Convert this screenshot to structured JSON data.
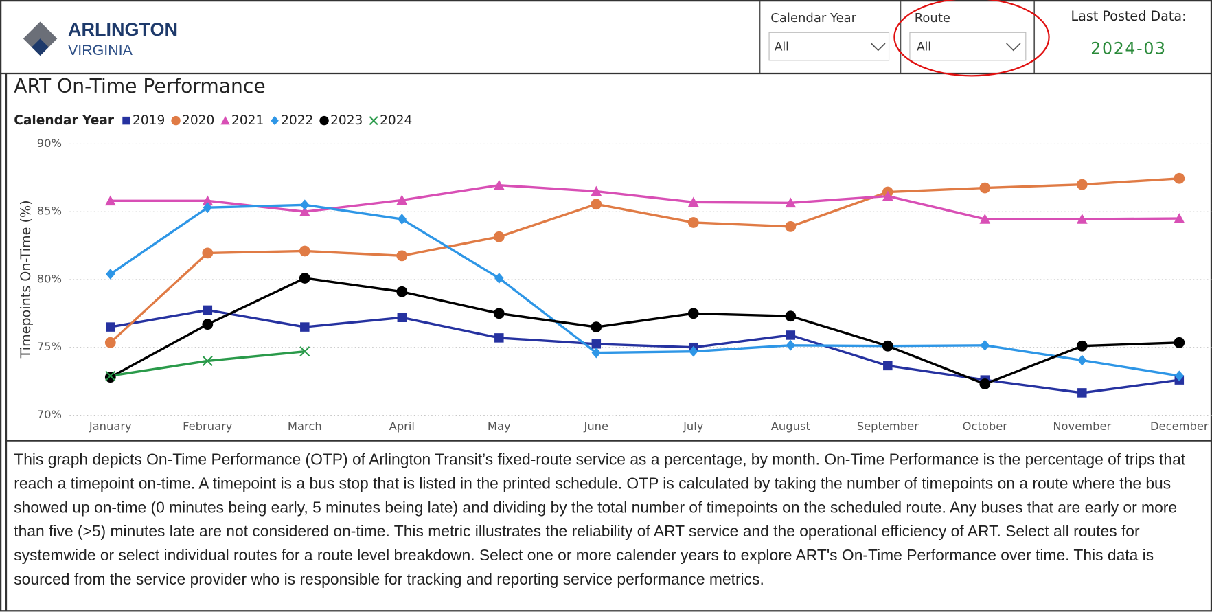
{
  "header": {
    "logo_name": "ARLINGTON",
    "logo_sub": "VIRGINIA"
  },
  "filters": [
    {
      "label": "Calendar Year",
      "value": "All"
    },
    {
      "label": "Route",
      "value": "All"
    }
  ],
  "last_posted": {
    "label": "Last Posted Data:",
    "value": "2024-03"
  },
  "chart_data": {
    "type": "line",
    "title": "ART On-Time Performance",
    "legend_title": "Calendar Year",
    "y_label": "Timepoints On-Time (%)",
    "categories": [
      "January",
      "February",
      "March",
      "April",
      "May",
      "June",
      "July",
      "August",
      "September",
      "October",
      "November",
      "December"
    ],
    "series": [
      {
        "name": "2019",
        "color": "#2632a0",
        "marker": "square",
        "values": [
          76.5,
          77.75,
          76.5,
          77.2,
          75.7,
          75.25,
          75.0,
          75.9,
          73.65,
          72.6,
          71.65,
          72.6
        ]
      },
      {
        "name": "2020",
        "color": "#e07b45",
        "marker": "circle",
        "values": [
          75.35,
          81.95,
          82.1,
          81.75,
          83.15,
          85.55,
          84.2,
          83.9,
          86.45,
          86.75,
          87.0,
          87.45
        ]
      },
      {
        "name": "2021",
        "color": "#d84fb5",
        "marker": "triangle",
        "values": [
          85.8,
          85.8,
          85.0,
          85.85,
          86.95,
          86.5,
          85.7,
          85.65,
          86.15,
          84.45,
          84.45,
          84.5
        ]
      },
      {
        "name": "2022",
        "color": "#2e96e6",
        "marker": "diamond",
        "values": [
          80.4,
          85.3,
          85.5,
          84.45,
          80.1,
          74.6,
          74.7,
          75.15,
          75.1,
          75.15,
          74.05,
          72.9
        ]
      },
      {
        "name": "2023",
        "color": "#000000",
        "marker": "circle",
        "values": [
          72.8,
          76.7,
          80.1,
          79.1,
          77.5,
          76.5,
          77.5,
          77.3,
          75.1,
          72.3,
          75.1,
          75.35
        ]
      },
      {
        "name": "2024",
        "color": "#2a9a4a",
        "marker": "x",
        "values": [
          72.9,
          74.0,
          74.7,
          null,
          null,
          null,
          null,
          null,
          null,
          null,
          null,
          null
        ]
      }
    ],
    "ylim": [
      70,
      90
    ],
    "yticks": [
      {
        "value": 70,
        "label": "70%"
      },
      {
        "value": 75,
        "label": "75%"
      },
      {
        "value": 80,
        "label": "80%"
      },
      {
        "value": 85,
        "label": "85%"
      },
      {
        "value": 90,
        "label": "90%"
      }
    ],
    "grid": true
  },
  "description": "This graph depicts On-Time Performance (OTP) of Arlington Transit’s fixed-route service as a percentage, by month. On-Time Performance is the percentage of trips that reach a timepoint on-time. A timepoint is a bus stop that is listed in the printed schedule. OTP is calculated by taking the number of timepoints on a route where the bus showed up on-time (0 minutes being early, 5 minutes being late) and dividing by the total number of timepoints on the scheduled route. Any buses that are early or more than five (>5) minutes late are not considered on-time. This metric illustrates the reliability of ART service and the operational efficiency of ART. Select all routes for systemwide or select individual routes for a route level breakdown. Select one or more calender years to explore ART's On-Time Performance over time. This data is sourced from the service provider who is responsible for tracking and reporting service performance metrics."
}
